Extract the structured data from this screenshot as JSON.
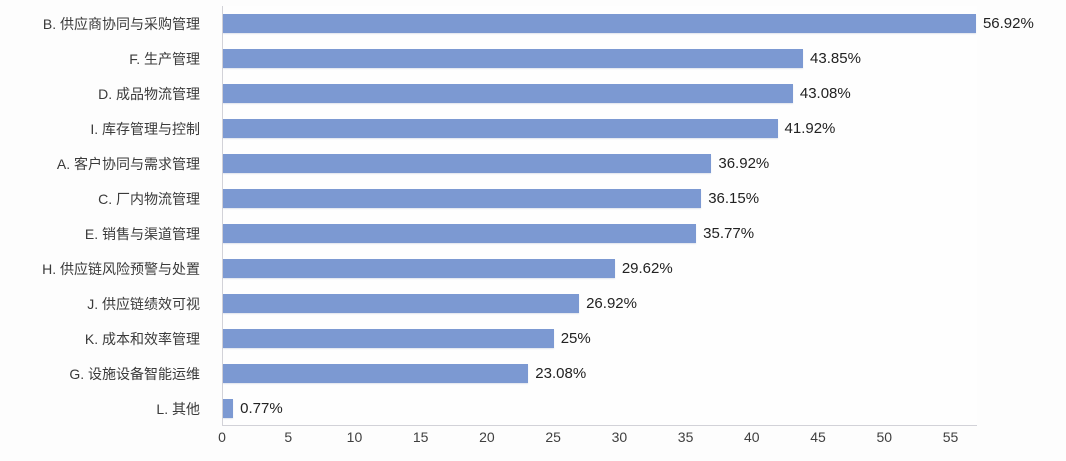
{
  "chart_data": {
    "type": "bar",
    "orientation": "horizontal",
    "title": "",
    "xlabel": "",
    "ylabel": "",
    "categories": [
      "B. 供应商协同与采购管理",
      "F. 生产管理",
      "D. 成品物流管理",
      "I. 库存管理与控制",
      "A. 客户协同与需求管理",
      "C. 厂内物流管理",
      "E. 销售与渠道管理",
      "H. 供应链风险预警与处置",
      "J. 供应链绩效可视",
      "K. 成本和效率管理",
      "G. 设施设备智能运维",
      "L. 其他"
    ],
    "values": [
      56.92,
      43.85,
      43.08,
      41.92,
      36.92,
      36.15,
      35.77,
      29.62,
      26.92,
      25,
      23.08,
      0.77
    ],
    "value_labels": [
      "56.92%",
      "43.85%",
      "43.08%",
      "41.92%",
      "36.92%",
      "36.15%",
      "35.77%",
      "29.62%",
      "26.92%",
      "25%",
      "23.08%",
      "0.77%"
    ],
    "x_ticks": [
      0,
      5,
      10,
      15,
      20,
      25,
      30,
      35,
      40,
      45,
      50,
      55
    ],
    "xlim": [
      0,
      57
    ],
    "grid": false,
    "legend_position": "none",
    "bar_color": "#7C99D2"
  }
}
